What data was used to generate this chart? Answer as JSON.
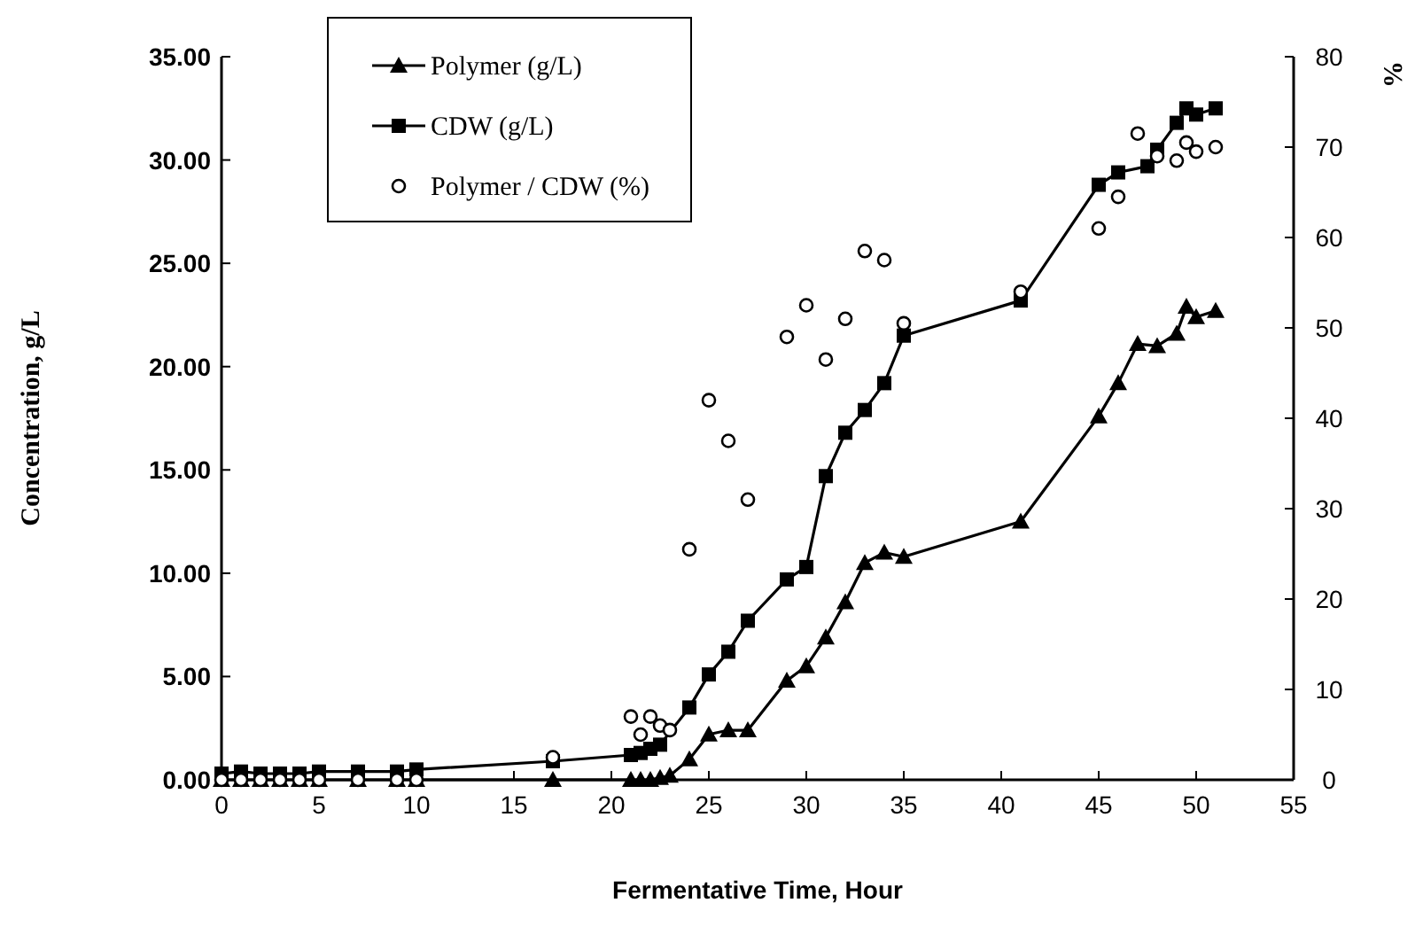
{
  "chart_data": {
    "type": "line",
    "xlabel": "Fermentative Time,  Hour",
    "ylabel": "Concentration,  g/L",
    "y2label": "%",
    "xlim": [
      0,
      55
    ],
    "xticks": [
      0,
      5,
      10,
      15,
      20,
      25,
      30,
      35,
      40,
      45,
      50,
      55
    ],
    "ylim": [
      0,
      35
    ],
    "yticks": [
      {
        "value": 0,
        "label": "0.00"
      },
      {
        "value": 5,
        "label": "5.00"
      },
      {
        "value": 10,
        "label": "10.00"
      },
      {
        "value": 15,
        "label": "15.00"
      },
      {
        "value": 20,
        "label": "20.00"
      },
      {
        "value": 25,
        "label": "25.00"
      },
      {
        "value": 30,
        "label": "30.00"
      },
      {
        "value": 35,
        "label": "35.00"
      }
    ],
    "y2lim": [
      0,
      80
    ],
    "y2ticks": [
      0,
      10,
      20,
      30,
      40,
      50,
      60,
      70,
      80
    ],
    "grid": false,
    "legend": "top",
    "series": [
      {
        "name": "Polymer (g/L)",
        "color": "#000000",
        "marker": "triangle",
        "x": [
          0,
          1,
          2,
          3,
          4,
          5,
          7,
          9,
          10,
          17,
          21,
          21.5,
          22,
          22.5,
          23,
          24,
          25,
          26,
          27,
          29,
          30,
          31,
          32,
          33,
          34,
          35,
          41,
          45,
          46,
          47,
          48,
          49,
          49.5,
          50,
          51
        ],
        "values": [
          0,
          0,
          0,
          0,
          0,
          0,
          0,
          0,
          0,
          0,
          0,
          0,
          0,
          0.1,
          0.2,
          1.0,
          2.2,
          2.4,
          2.4,
          4.8,
          5.5,
          6.9,
          8.6,
          10.5,
          11.0,
          10.8,
          12.5,
          17.6,
          19.2,
          21.1,
          21.0,
          21.6,
          22.9,
          22.4,
          22.7
        ]
      },
      {
        "name": "CDW (g/L)",
        "color": "#000000",
        "marker": "square",
        "x": [
          0,
          1,
          2,
          3,
          4,
          5,
          7,
          9,
          10,
          17,
          21,
          21.5,
          22,
          22.5,
          24,
          25,
          26,
          27,
          29,
          30,
          31,
          32,
          33,
          34,
          35,
          41,
          45,
          46,
          47.5,
          48,
          49,
          49.5,
          50,
          51
        ],
        "values": [
          0.3,
          0.4,
          0.3,
          0.3,
          0.3,
          0.4,
          0.4,
          0.4,
          0.5,
          0.9,
          1.2,
          1.3,
          1.5,
          1.7,
          3.5,
          5.1,
          6.2,
          7.7,
          9.7,
          10.3,
          14.7,
          16.8,
          17.9,
          19.2,
          21.5,
          23.2,
          28.8,
          29.4,
          29.7,
          30.5,
          31.8,
          32.5,
          32.2,
          32.5
        ]
      },
      {
        "name": "Polymer / CDW (%)",
        "type": "scatter",
        "axis": "y2",
        "color": "#000000",
        "marker": "circle",
        "x": [
          0,
          1,
          2,
          3,
          4,
          5,
          7,
          9,
          10,
          17,
          21,
          21.5,
          22,
          22.5,
          23,
          24,
          25,
          26,
          27,
          29,
          30,
          31,
          32,
          33,
          34,
          35,
          41,
          45,
          46,
          47,
          48,
          49,
          49.5,
          50,
          51
        ],
        "values": [
          0,
          0,
          0,
          0,
          0,
          0,
          0,
          0,
          0,
          2.5,
          7,
          5,
          7,
          6,
          5.5,
          25.5,
          42,
          37.5,
          31,
          49,
          52.5,
          46.5,
          51,
          58.5,
          57.5,
          50.5,
          54,
          61,
          64.5,
          71.5,
          69,
          68.5,
          70.5,
          69.5,
          70
        ]
      }
    ]
  }
}
